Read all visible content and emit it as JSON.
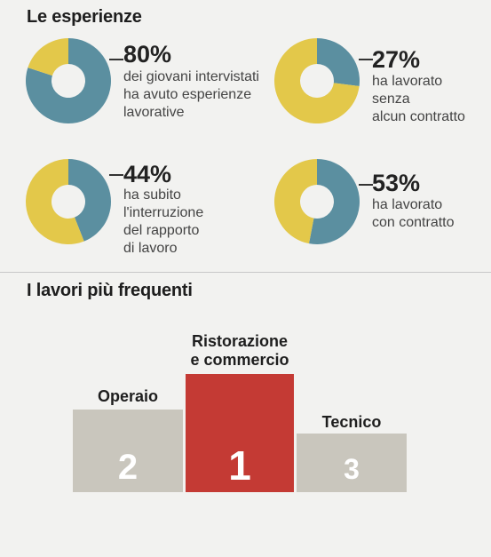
{
  "section1_title": "Le esperienze",
  "section2_title": "I lavori più frequenti",
  "colors": {
    "teal": "#5b8fa0",
    "yellow": "#e3c84a",
    "red": "#c43a34",
    "grey": "#c9c6bd"
  },
  "chart_data": [
    {
      "type": "pie",
      "variant": "donut",
      "percent_label": "80%",
      "description": "dei giovani intervistati\nha avuto esperienze\nlavorative",
      "slices": [
        {
          "value": 80,
          "color": "#5b8fa0"
        },
        {
          "value": 20,
          "color": "#e3c84a"
        }
      ]
    },
    {
      "type": "pie",
      "variant": "donut",
      "percent_label": "27%",
      "description": "ha lavorato\nsenza\nalcun contratto",
      "slices": [
        {
          "value": 27,
          "color": "#5b8fa0"
        },
        {
          "value": 73,
          "color": "#e3c84a"
        }
      ]
    },
    {
      "type": "pie",
      "variant": "donut",
      "percent_label": "44%",
      "description": "ha subito\nl'interruzione\ndel rapporto\ndi lavoro",
      "slices": [
        {
          "value": 44,
          "color": "#5b8fa0"
        },
        {
          "value": 56,
          "color": "#e3c84a"
        }
      ]
    },
    {
      "type": "pie",
      "variant": "donut",
      "percent_label": "53%",
      "description": "ha lavorato\ncon contratto",
      "slices": [
        {
          "value": 53,
          "color": "#5b8fa0"
        },
        {
          "value": 47,
          "color": "#e3c84a"
        }
      ]
    },
    {
      "type": "bar",
      "variant": "podium",
      "categories": [
        "Operaio",
        "Ristorazione\ne commercio",
        "Tecnico"
      ],
      "values": [
        2,
        1,
        3
      ],
      "colors": [
        "#c9c6bd",
        "#c43a34",
        "#c9c6bd"
      ]
    }
  ]
}
